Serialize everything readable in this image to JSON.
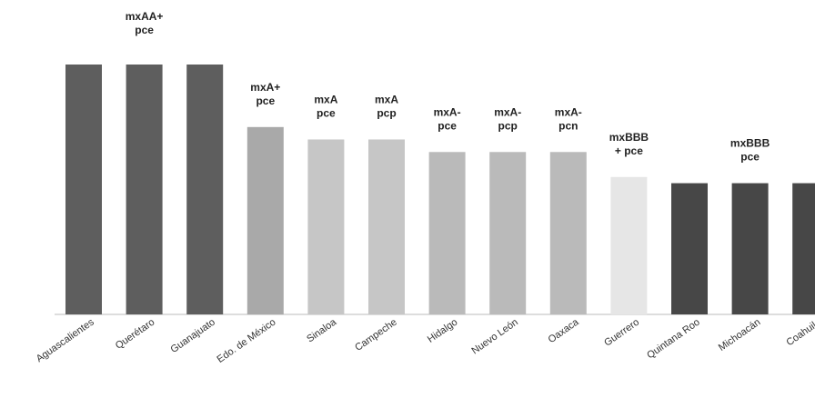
{
  "chart_data": {
    "type": "bar",
    "title": "",
    "xlabel": "",
    "ylabel": "",
    "grid": false,
    "legend": "none",
    "categories": [
      "Aguascalientes",
      "Querétaro",
      "Guanajuato",
      "Edo. de México",
      "Sinaloa",
      "Campeche",
      "Hidalgo",
      "Nuevo León",
      "Oaxaca",
      "Guerrero",
      "Quintana Roo",
      "Michoacán",
      "Coahuila"
    ],
    "values": [
      4,
      4,
      4,
      3,
      2.8,
      2.8,
      2.6,
      2.6,
      2.6,
      2.2,
      2.1,
      2.1,
      2.1
    ],
    "colors": [
      "#5e5e5e",
      "#5e5e5e",
      "#5e5e5e",
      "#a9a9a9",
      "#c6c6c6",
      "#c6c6c6",
      "#bababa",
      "#bababa",
      "#bababa",
      "#e6e6e6",
      "#474747",
      "#474747",
      "#474747"
    ],
    "ylim": [
      0,
      4
    ],
    "ratings": [
      {
        "bar": 1,
        "line1": "mxAA+",
        "line2": "pce"
      },
      {
        "bar": 3,
        "line1": "mxA+",
        "line2": "pce"
      },
      {
        "bar": 4,
        "line1": "mxA",
        "line2": "pce"
      },
      {
        "bar": 5,
        "line1": "mxA",
        "line2": "pcp"
      },
      {
        "bar": 6,
        "line1": "mxA-",
        "line2": "pce"
      },
      {
        "bar": 7,
        "line1": "mxA-",
        "line2": "pcp"
      },
      {
        "bar": 8,
        "line1": "mxA-",
        "line2": "pcn"
      },
      {
        "bar": 9,
        "line1": "mxBBB",
        "line2": "+ pce"
      },
      {
        "bar": 11,
        "line1": "mxBBB",
        "line2": "pce"
      }
    ]
  }
}
